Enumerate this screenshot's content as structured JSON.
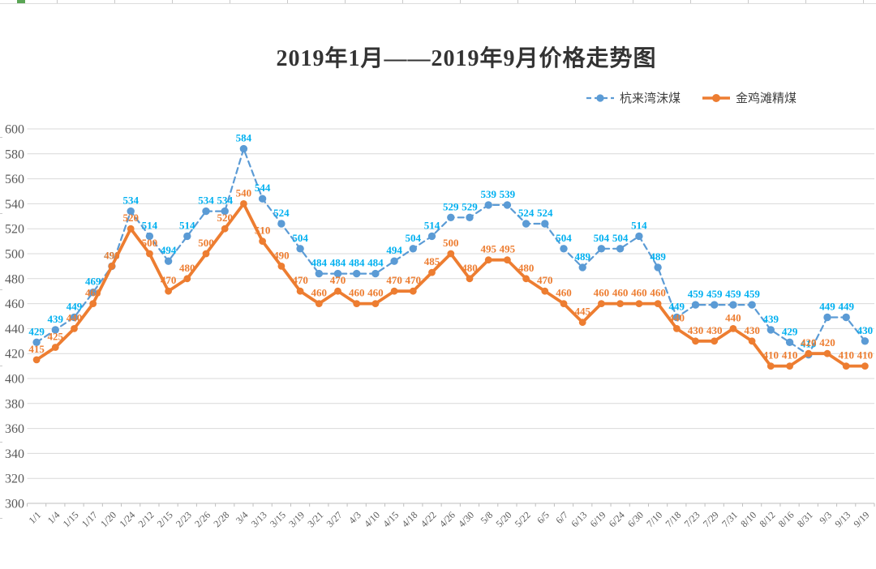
{
  "chart_data": {
    "type": "line",
    "title": "2019年1月——2019年9月价格走势图",
    "categories": [
      "1/1",
      "1/4",
      "1/15",
      "1/17",
      "1/20",
      "1/24",
      "2/12",
      "2/15",
      "2/23",
      "2/26",
      "2/28",
      "3/4",
      "3/13",
      "3/15",
      "3/19",
      "3/21",
      "3/27",
      "4/3",
      "4/10",
      "4/15",
      "4/18",
      "4/22",
      "4/26",
      "4/30",
      "5/8",
      "5/20",
      "5/22",
      "6/5",
      "6/7",
      "6/13",
      "6/19",
      "6/24",
      "6/30",
      "7/10",
      "7/18",
      "7/23",
      "7/29",
      "7/31",
      "8/10",
      "8/12",
      "8/16",
      "8/31",
      "9/3",
      "9/13",
      "9/19"
    ],
    "series": [
      {
        "name": "杭来湾沫煤",
        "style": "dashed",
        "color": "#5B9BD5",
        "label_color": "#00B0F0",
        "values": [
          429,
          439,
          449,
          469,
          490,
          534,
          514,
          494,
          514,
          534,
          534,
          584,
          544,
          524,
          504,
          484,
          484,
          484,
          484,
          494,
          504,
          514,
          529,
          529,
          539,
          539,
          524,
          524,
          504,
          489,
          504,
          504,
          514,
          489,
          449,
          459,
          459,
          459,
          459,
          439,
          429,
          419,
          449,
          449,
          430
        ]
      },
      {
        "name": "金鸡滩精煤",
        "style": "solid",
        "color": "#ED7D31",
        "label_color": "#ED7D31",
        "values": [
          415,
          425,
          440,
          460,
          490,
          520,
          500,
          470,
          480,
          500,
          520,
          540,
          510,
          490,
          470,
          460,
          470,
          460,
          460,
          470,
          470,
          485,
          500,
          480,
          495,
          495,
          480,
          470,
          460,
          445,
          460,
          460,
          460,
          460,
          440,
          430,
          430,
          440,
          430,
          410,
          410,
          420,
          420,
          410,
          410
        ]
      }
    ],
    "ylim": [
      300,
      600
    ],
    "ytick_step": 20,
    "xlabel": "",
    "ylabel": "",
    "grid": true,
    "legend_position": "top-right",
    "axis_text_color": "#595959",
    "grid_color": "#D9D9D9",
    "axis_line_color": "#BFBFBF"
  }
}
